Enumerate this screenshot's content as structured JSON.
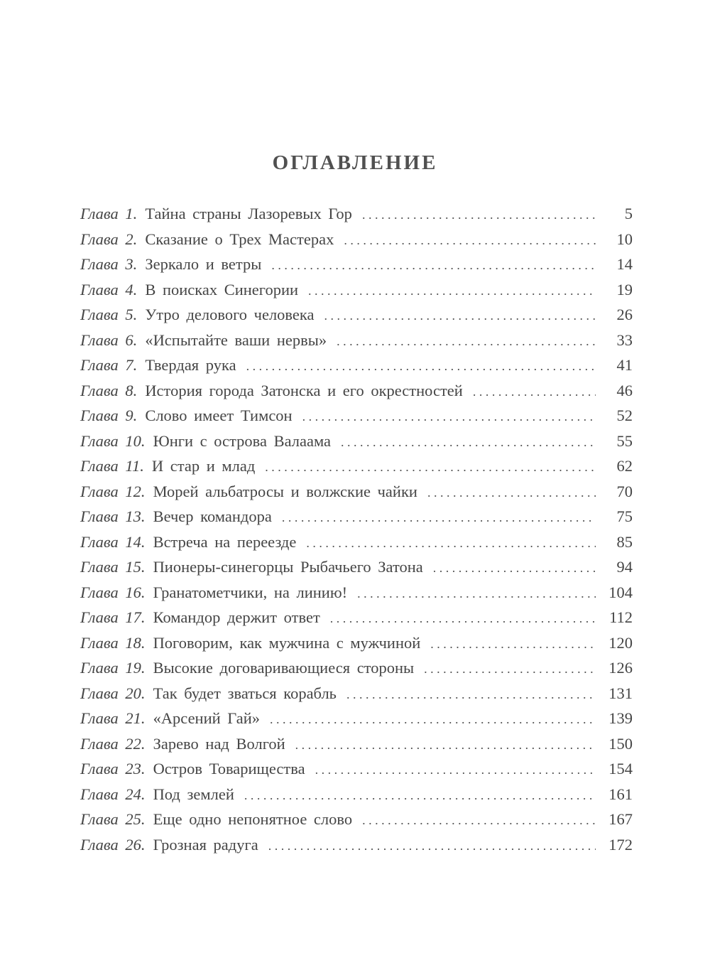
{
  "title": "ОГЛАВЛЕНИЕ",
  "entries": [
    {
      "label": "Глава 1.",
      "title": "Тайна страны Лазоревых Гор",
      "page": "5"
    },
    {
      "label": "Глава 2.",
      "title": "Сказание о Трех Мастерах",
      "page": "10"
    },
    {
      "label": "Глава 3.",
      "title": "Зеркало и ветры",
      "page": "14"
    },
    {
      "label": "Глава 4.",
      "title": "В поисках Синегории",
      "page": "19"
    },
    {
      "label": "Глава 5.",
      "title": "Утро делового человека",
      "page": "26"
    },
    {
      "label": "Глава 6.",
      "title": "«Испытайте ваши нервы»",
      "page": "33"
    },
    {
      "label": "Глава 7.",
      "title": "Твердая рука",
      "page": "41"
    },
    {
      "label": "Глава 8.",
      "title": "История города Затонска и его окрестностей",
      "page": "46"
    },
    {
      "label": "Глава 9.",
      "title": "Слово имеет Тимсон",
      "page": "52"
    },
    {
      "label": "Глава 10.",
      "title": "Юнги с острова Валаама",
      "page": "55"
    },
    {
      "label": "Глава 11.",
      "title": "И стар и млад",
      "page": "62"
    },
    {
      "label": "Глава 12.",
      "title": "Морей альбатросы и волжские чайки",
      "page": "70"
    },
    {
      "label": "Глава 13.",
      "title": "Вечер командора",
      "page": "75"
    },
    {
      "label": "Глава 14.",
      "title": "Встреча на переезде",
      "page": "85"
    },
    {
      "label": "Глава 15.",
      "title": "Пионеры-синегорцы Рыбачьего Затона",
      "page": "94"
    },
    {
      "label": "Глава 16.",
      "title": "Гранатометчики, на линию!",
      "page": "104"
    },
    {
      "label": "Глава 17.",
      "title": "Командор держит ответ",
      "page": "112"
    },
    {
      "label": "Глава 18.",
      "title": "Поговорим, как мужчина с мужчиной",
      "page": "120"
    },
    {
      "label": "Глава 19.",
      "title": "Высокие договаривающиеся стороны",
      "page": "126"
    },
    {
      "label": "Глава 20.",
      "title": "Так будет зваться корабль",
      "page": "131"
    },
    {
      "label": "Глава 21.",
      "title": "«Арсений Гай»",
      "page": "139"
    },
    {
      "label": "Глава 22.",
      "title": "Зарево над Волгой",
      "page": "150"
    },
    {
      "label": "Глава 23.",
      "title": "Остров Товарищества",
      "page": "154"
    },
    {
      "label": "Глава 24.",
      "title": "Под землей",
      "page": "161"
    },
    {
      "label": "Глава 25.",
      "title": "Еще одно непонятное слово",
      "page": "167"
    },
    {
      "label": "Глава 26.",
      "title": "Грозная радуга",
      "page": "172"
    }
  ]
}
